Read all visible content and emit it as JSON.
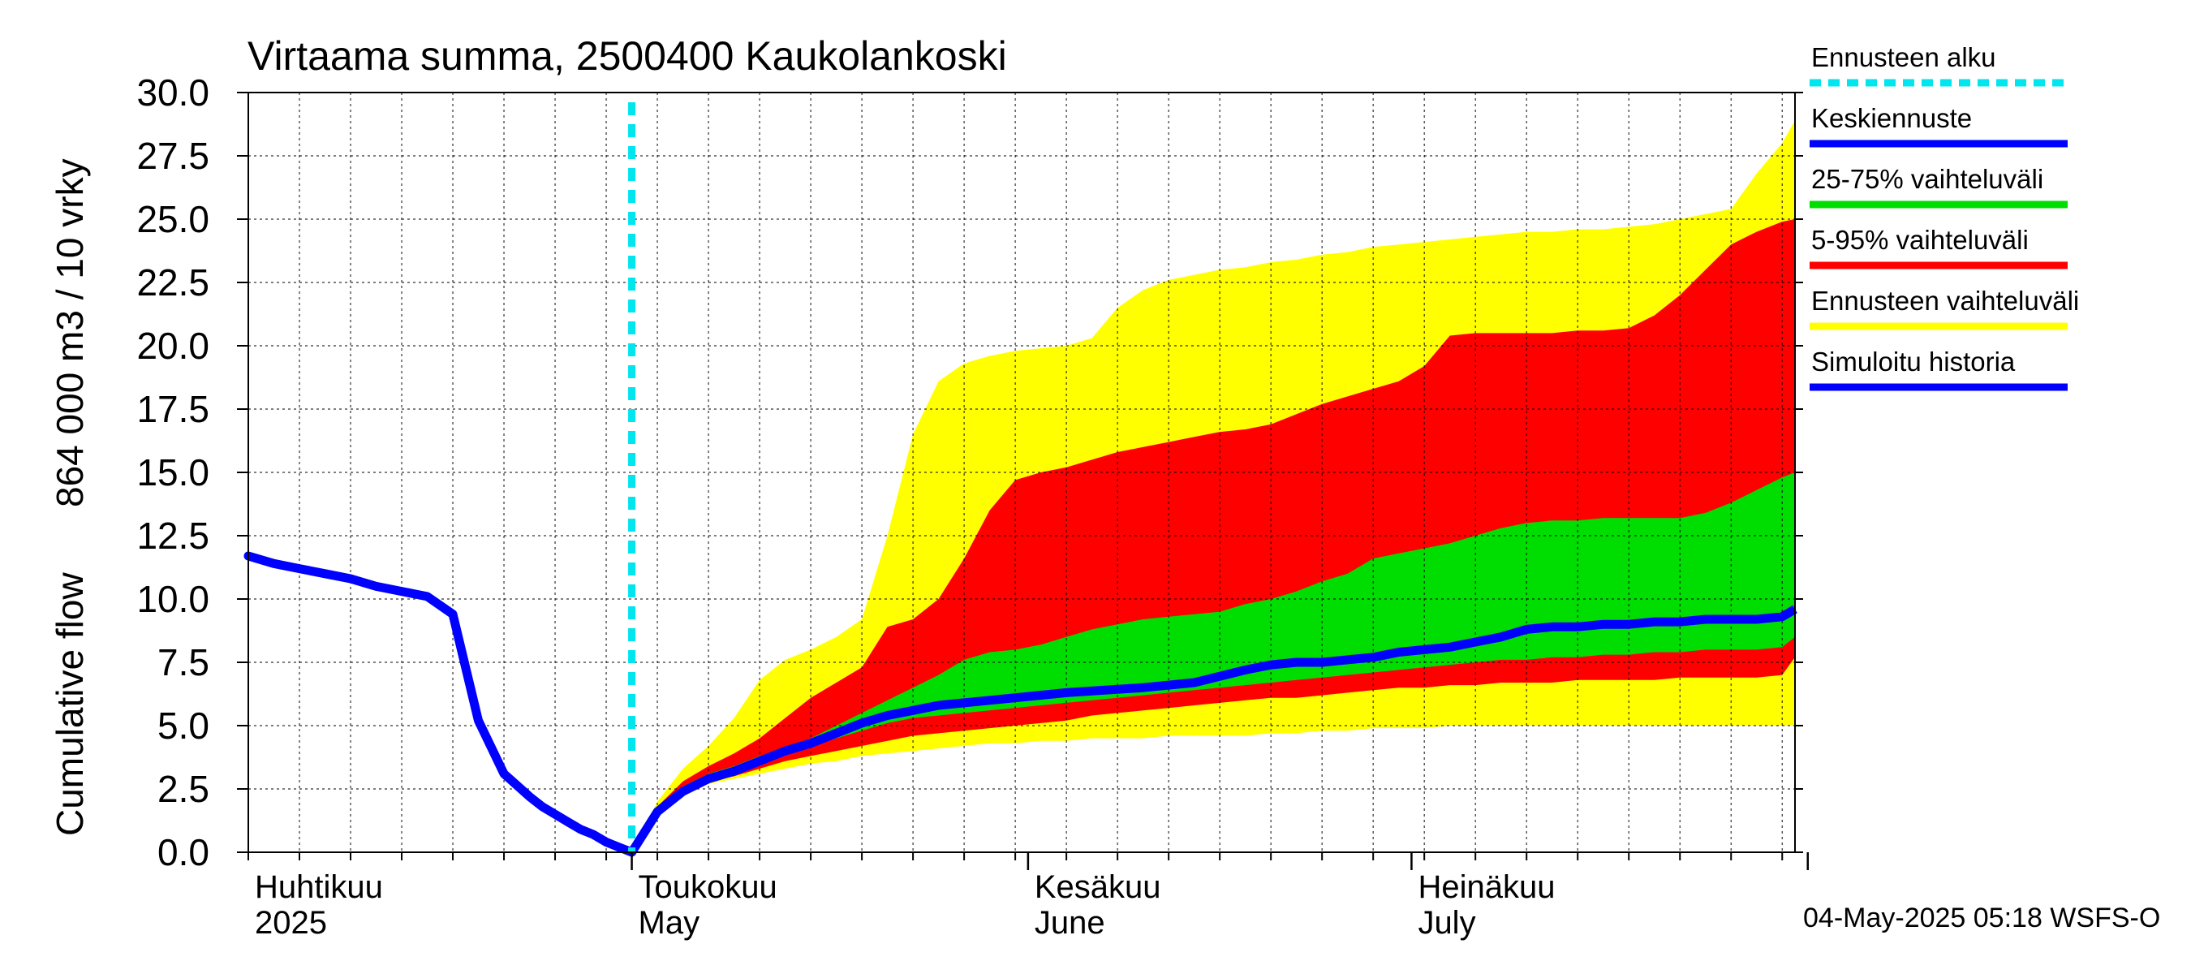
{
  "chart_data": {
    "type": "area",
    "title": "Virtaama summa, 2500400 Kaukolankoski",
    "ylabel_top": "864 000 m3 / 10 vrky",
    "ylabel_bottom": "Cumulative flow",
    "ylim": [
      0,
      30
    ],
    "yticks": [
      "0.0",
      "2.5",
      "5.0",
      "7.5",
      "10.0",
      "12.5",
      "15.0",
      "17.5",
      "20.0",
      "22.5",
      "25.0",
      "27.5",
      "30.0"
    ],
    "ytick_values": [
      0,
      2.5,
      5,
      7.5,
      10,
      12.5,
      15,
      17.5,
      20,
      22.5,
      25,
      27.5,
      30
    ],
    "x_range_days": [
      0,
      121
    ],
    "forecast_start_day": 30,
    "month_labels": [
      {
        "fi": "Huhtikuu",
        "en": "2025",
        "day": 0
      },
      {
        "fi": "Toukokuu",
        "en": "May",
        "day": 30
      },
      {
        "fi": "Kesäkuu",
        "en": "June",
        "day": 61
      },
      {
        "fi": "Heinäkuu",
        "en": "July",
        "day": 91
      }
    ],
    "month_boundaries": [
      30,
      61,
      91,
      122
    ],
    "legend": [
      {
        "label": "Ennusteen alku",
        "color": "#00e5ee",
        "style": "dashed"
      },
      {
        "label": "Keskiennuste",
        "color": "#0000ff",
        "style": "solid"
      },
      {
        "label": "25-75% vaihteluväli",
        "color": "#00dd00",
        "style": "solid"
      },
      {
        "label": "5-95% vaihteluväli",
        "color": "#ff0000",
        "style": "solid"
      },
      {
        "label": "Ennusteen vaihteluväli",
        "color": "#ffff00",
        "style": "solid"
      },
      {
        "label": "Simuloitu historia",
        "color": "#0000ff",
        "style": "solid"
      }
    ],
    "colors": {
      "envelope": "#ffff00",
      "p5_95": "#ff0000",
      "p25_75": "#00dd00",
      "median": "#0000ff",
      "history": "#0000ff",
      "forecast_start": "#00e5ee"
    },
    "history": {
      "x": [
        0,
        2,
        4,
        6,
        8,
        10,
        12,
        14,
        16,
        18,
        20,
        22,
        23,
        24,
        25,
        26,
        27,
        28,
        29,
        30
      ],
      "y": [
        11.7,
        11.4,
        11.2,
        11.0,
        10.8,
        10.5,
        10.3,
        10.1,
        9.4,
        5.2,
        3.1,
        2.2,
        1.8,
        1.5,
        1.2,
        0.9,
        0.7,
        0.4,
        0.2,
        0.0
      ]
    },
    "median": {
      "x": [
        30,
        32,
        34,
        36,
        38,
        40,
        42,
        44,
        46,
        48,
        50,
        52,
        54,
        56,
        58,
        60,
        64,
        70,
        74,
        78,
        80,
        82,
        84,
        86,
        88,
        90,
        92,
        94,
        96,
        98,
        100,
        102,
        104,
        106,
        108,
        110,
        112,
        114,
        116,
        118,
        120,
        121
      ],
      "y": [
        0.0,
        1.6,
        2.4,
        2.9,
        3.2,
        3.6,
        4.0,
        4.3,
        4.7,
        5.1,
        5.4,
        5.6,
        5.8,
        5.9,
        6.0,
        6.1,
        6.3,
        6.5,
        6.7,
        7.2,
        7.4,
        7.5,
        7.5,
        7.6,
        7.7,
        7.9,
        8.0,
        8.1,
        8.3,
        8.5,
        8.8,
        8.9,
        8.9,
        9.0,
        9.0,
        9.1,
        9.1,
        9.2,
        9.2,
        9.2,
        9.3,
        9.6
      ]
    },
    "bands": {
      "x": [
        30,
        32,
        34,
        36,
        38,
        40,
        42,
        44,
        46,
        48,
        50,
        52,
        54,
        56,
        58,
        60,
        62,
        64,
        66,
        68,
        70,
        72,
        74,
        76,
        78,
        80,
        82,
        84,
        86,
        88,
        90,
        92,
        94,
        96,
        98,
        100,
        102,
        104,
        106,
        108,
        110,
        112,
        114,
        116,
        118,
        120,
        121
      ],
      "env_low": [
        0.0,
        1.6,
        2.3,
        2.7,
        2.9,
        3.1,
        3.3,
        3.5,
        3.6,
        3.8,
        3.9,
        4.0,
        4.1,
        4.2,
        4.3,
        4.3,
        4.4,
        4.4,
        4.5,
        4.5,
        4.5,
        4.6,
        4.6,
        4.6,
        4.6,
        4.7,
        4.7,
        4.8,
        4.8,
        4.9,
        4.9,
        4.9,
        5.0,
        5.0,
        5.0,
        5.0,
        5.0,
        5.0,
        5.0,
        5.0,
        5.0,
        5.0,
        5.0,
        5.0,
        5.0,
        5.0,
        5.0
      ],
      "p5": [
        0.0,
        1.6,
        2.4,
        2.8,
        3.0,
        3.3,
        3.6,
        3.8,
        4.0,
        4.2,
        4.4,
        4.6,
        4.7,
        4.8,
        4.9,
        5.0,
        5.1,
        5.2,
        5.4,
        5.5,
        5.6,
        5.7,
        5.8,
        5.9,
        6.0,
        6.1,
        6.1,
        6.2,
        6.3,
        6.4,
        6.5,
        6.5,
        6.6,
        6.6,
        6.7,
        6.7,
        6.7,
        6.8,
        6.8,
        6.8,
        6.8,
        6.9,
        6.9,
        6.9,
        6.9,
        7.0,
        7.7
      ],
      "p25": [
        0.0,
        1.6,
        2.5,
        2.9,
        3.2,
        3.6,
        3.9,
        4.2,
        4.5,
        4.8,
        5.1,
        5.3,
        5.4,
        5.5,
        5.6,
        5.7,
        5.8,
        5.9,
        6.0,
        6.1,
        6.2,
        6.3,
        6.4,
        6.5,
        6.6,
        6.7,
        6.8,
        6.9,
        7.0,
        7.1,
        7.2,
        7.3,
        7.4,
        7.5,
        7.6,
        7.6,
        7.7,
        7.7,
        7.8,
        7.8,
        7.9,
        7.9,
        8.0,
        8.0,
        8.0,
        8.1,
        8.5
      ],
      "p75": [
        0.0,
        1.7,
        2.6,
        3.1,
        3.4,
        3.8,
        4.1,
        4.5,
        5.0,
        5.5,
        6.0,
        6.5,
        7.0,
        7.6,
        7.9,
        8.0,
        8.2,
        8.5,
        8.8,
        9.0,
        9.2,
        9.3,
        9.4,
        9.5,
        9.8,
        10.0,
        10.3,
        10.7,
        11.0,
        11.6,
        11.8,
        12.0,
        12.2,
        12.5,
        12.8,
        13.0,
        13.1,
        13.1,
        13.2,
        13.2,
        13.2,
        13.2,
        13.4,
        13.8,
        14.3,
        14.8,
        15.0
      ],
      "p95": [
        0.0,
        1.8,
        2.8,
        3.4,
        3.9,
        4.5,
        5.3,
        6.1,
        6.7,
        7.3,
        8.9,
        9.2,
        10.0,
        11.6,
        13.5,
        14.7,
        15.0,
        15.2,
        15.5,
        15.8,
        16.0,
        16.2,
        16.4,
        16.6,
        16.7,
        16.9,
        17.3,
        17.7,
        18.0,
        18.3,
        18.6,
        19.2,
        20.4,
        20.5,
        20.5,
        20.5,
        20.5,
        20.6,
        20.6,
        20.7,
        21.2,
        22.0,
        23.0,
        24.0,
        24.5,
        24.9,
        25.0
      ],
      "env_high": [
        0.0,
        2.0,
        3.3,
        4.2,
        5.3,
        6.8,
        7.6,
        8.0,
        8.5,
        9.2,
        12.5,
        16.5,
        18.6,
        19.3,
        19.6,
        19.8,
        19.9,
        20.0,
        20.3,
        21.5,
        22.2,
        22.6,
        22.8,
        23.0,
        23.1,
        23.3,
        23.4,
        23.6,
        23.7,
        23.9,
        24.0,
        24.1,
        24.2,
        24.3,
        24.4,
        24.5,
        24.5,
        24.6,
        24.6,
        24.7,
        24.8,
        25.0,
        25.2,
        25.4,
        26.8,
        28.0,
        28.9
      ]
    },
    "footer": "04-May-2025 05:18 WSFS-O"
  }
}
